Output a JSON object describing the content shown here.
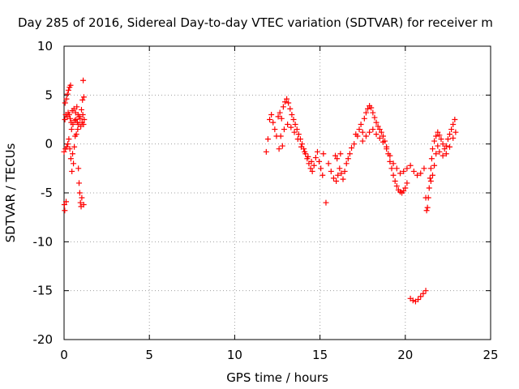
{
  "chart_data": {
    "type": "scatter",
    "title": "Day 285 of 2016, Sidereal Day-to-day VTEC variation (SDTVAR) for receiver m",
    "xlabel": "GPS time / hours",
    "ylabel": "SDTVAR / TECUs",
    "xlim": [
      0,
      25
    ],
    "ylim": [
      -20,
      10
    ],
    "xticks": [
      "0",
      "5",
      "10",
      "15",
      "20",
      "25"
    ],
    "yticks": [
      "10",
      "5",
      "0",
      "-5",
      "-10",
      "-15",
      "-20"
    ],
    "grid": true,
    "legend": "none",
    "marker": "plus",
    "color": "#ff0000",
    "series": [
      {
        "points": [
          [
            0.0,
            -0.8
          ],
          [
            0.02,
            -6.2
          ],
          [
            0.04,
            -6.8
          ],
          [
            0.05,
            2.5
          ],
          [
            0.06,
            4.2
          ],
          [
            0.08,
            -0.5
          ],
          [
            0.1,
            3.0
          ],
          [
            0.12,
            -5.9
          ],
          [
            0.14,
            4.6
          ],
          [
            0.16,
            -0.3
          ],
          [
            0.18,
            2.8
          ],
          [
            0.2,
            5.1
          ],
          [
            0.22,
            0.0
          ],
          [
            0.24,
            3.2
          ],
          [
            0.26,
            5.5
          ],
          [
            0.28,
            0.5
          ],
          [
            0.3,
            3.0
          ],
          [
            0.32,
            5.8
          ],
          [
            0.34,
            -0.5
          ],
          [
            0.36,
            2.6
          ],
          [
            0.38,
            6.0
          ],
          [
            0.4,
            -1.5
          ],
          [
            0.42,
            2.2
          ],
          [
            0.44,
            1.5
          ],
          [
            0.46,
            -2.8
          ],
          [
            0.48,
            3.4
          ],
          [
            0.5,
            -1.0
          ],
          [
            0.52,
            2.0
          ],
          [
            0.55,
            -2.0
          ],
          [
            0.58,
            3.6
          ],
          [
            0.6,
            -0.3
          ],
          [
            0.62,
            2.4
          ],
          [
            0.65,
            0.8
          ],
          [
            0.68,
            3.2
          ],
          [
            0.7,
            2.5
          ],
          [
            0.72,
            1.0
          ],
          [
            0.75,
            3.8
          ],
          [
            0.78,
            2.2
          ],
          [
            0.8,
            1.5
          ],
          [
            0.82,
            3.0
          ],
          [
            0.84,
            -2.5
          ],
          [
            0.86,
            2.0
          ],
          [
            0.88,
            -4.0
          ],
          [
            0.9,
            2.8
          ],
          [
            0.92,
            -5.0
          ],
          [
            0.94,
            2.6
          ],
          [
            0.96,
            -6.0
          ],
          [
            0.98,
            1.8
          ],
          [
            1.0,
            -6.4
          ],
          [
            1.02,
            3.5
          ],
          [
            1.04,
            -5.5
          ],
          [
            1.06,
            2.2
          ],
          [
            1.08,
            4.5
          ],
          [
            1.1,
            3.0
          ],
          [
            1.12,
            6.5
          ],
          [
            1.14,
            2.0
          ],
          [
            1.15,
            -6.2
          ],
          [
            1.16,
            4.8
          ],
          [
            1.18,
            2.5
          ],
          [
            11.85,
            -0.8
          ],
          [
            11.95,
            0.5
          ],
          [
            12.05,
            2.5
          ],
          [
            12.15,
            3.0
          ],
          [
            12.25,
            2.2
          ],
          [
            12.35,
            1.5
          ],
          [
            12.45,
            0.8
          ],
          [
            12.55,
            2.8
          ],
          [
            12.65,
            3.2
          ],
          [
            12.75,
            2.6
          ],
          [
            12.85,
            3.8
          ],
          [
            12.95,
            4.3
          ],
          [
            13.05,
            4.6
          ],
          [
            13.15,
            4.2
          ],
          [
            13.25,
            3.6
          ],
          [
            13.35,
            3.0
          ],
          [
            13.45,
            2.5
          ],
          [
            13.55,
            2.0
          ],
          [
            13.65,
            1.5
          ],
          [
            13.75,
            1.0
          ],
          [
            13.85,
            0.5
          ],
          [
            13.95,
            0.0
          ],
          [
            14.05,
            -0.5
          ],
          [
            14.15,
            -1.0
          ],
          [
            14.25,
            -1.5
          ],
          [
            14.35,
            -2.0
          ],
          [
            14.45,
            -2.5
          ],
          [
            14.55,
            -2.8
          ],
          [
            14.65,
            -2.2
          ],
          [
            14.75,
            -1.4
          ],
          [
            14.85,
            -0.8
          ],
          [
            14.95,
            -1.8
          ],
          [
            15.05,
            -2.5
          ],
          [
            15.15,
            -3.2
          ],
          [
            12.7,
            0.8
          ],
          [
            12.9,
            1.5
          ],
          [
            13.1,
            2.0
          ],
          [
            13.3,
            1.7
          ],
          [
            13.5,
            1.2
          ],
          [
            13.7,
            0.5
          ],
          [
            13.9,
            -0.3
          ],
          [
            14.1,
            -0.8
          ],
          [
            14.3,
            -1.3
          ],
          [
            14.5,
            -1.8
          ],
          [
            12.8,
            -0.2
          ],
          [
            12.6,
            -0.5
          ],
          [
            15.2,
            -1.0
          ],
          [
            15.35,
            -6.0
          ],
          [
            15.5,
            -2.0
          ],
          [
            15.65,
            -2.8
          ],
          [
            15.8,
            -3.5
          ],
          [
            15.95,
            -3.8
          ],
          [
            16.05,
            -3.2
          ],
          [
            16.15,
            -2.5
          ],
          [
            16.25,
            -3.0
          ],
          [
            16.35,
            -3.6
          ],
          [
            16.45,
            -2.8
          ],
          [
            16.55,
            -2.0
          ],
          [
            16.65,
            -1.5
          ],
          [
            16.75,
            -1.0
          ],
          [
            16.85,
            -0.4
          ],
          [
            15.9,
            -1.2
          ],
          [
            16.0,
            -1.5
          ],
          [
            16.2,
            -1.0
          ],
          [
            17.0,
            0.0
          ],
          [
            17.1,
            1.0
          ],
          [
            17.2,
            0.8
          ],
          [
            17.3,
            1.5
          ],
          [
            17.4,
            2.0
          ],
          [
            17.5,
            1.2
          ],
          [
            17.6,
            2.6
          ],
          [
            17.7,
            3.2
          ],
          [
            17.8,
            3.6
          ],
          [
            17.9,
            3.9
          ],
          [
            18.0,
            3.7
          ],
          [
            18.1,
            3.2
          ],
          [
            18.2,
            2.7
          ],
          [
            18.3,
            2.2
          ],
          [
            18.4,
            1.8
          ],
          [
            18.5,
            1.5
          ],
          [
            18.6,
            1.2
          ],
          [
            18.7,
            0.8
          ],
          [
            18.8,
            0.3
          ],
          [
            18.9,
            -0.3
          ],
          [
            19.0,
            -1.0
          ],
          [
            19.1,
            -1.8
          ],
          [
            19.2,
            -2.5
          ],
          [
            19.3,
            -3.2
          ],
          [
            19.4,
            -3.8
          ],
          [
            19.5,
            -4.3
          ],
          [
            19.6,
            -4.7
          ],
          [
            19.7,
            -4.9
          ],
          [
            19.8,
            -5.0
          ],
          [
            19.9,
            -4.8
          ],
          [
            20.0,
            -4.5
          ],
          [
            20.1,
            -4.0
          ],
          [
            17.5,
            0.3
          ],
          [
            17.7,
            0.8
          ],
          [
            17.9,
            1.2
          ],
          [
            18.1,
            1.5
          ],
          [
            18.3,
            1.0
          ],
          [
            18.5,
            0.6
          ],
          [
            18.7,
            0.2
          ],
          [
            18.9,
            -0.5
          ],
          [
            19.1,
            -1.2
          ],
          [
            19.3,
            -2.0
          ],
          [
            19.5,
            -2.5
          ],
          [
            19.7,
            -3.0
          ],
          [
            19.9,
            -2.8
          ],
          [
            20.1,
            -2.5
          ],
          [
            20.3,
            -2.2
          ],
          [
            20.5,
            -2.8
          ],
          [
            20.7,
            -3.2
          ],
          [
            20.9,
            -3.0
          ],
          [
            21.1,
            -2.5
          ],
          [
            20.3,
            -15.8
          ],
          [
            20.45,
            -16.0
          ],
          [
            20.6,
            -16.1
          ],
          [
            20.75,
            -15.9
          ],
          [
            20.9,
            -15.6
          ],
          [
            21.05,
            -15.3
          ],
          [
            21.2,
            -15.0
          ],
          [
            21.2,
            -5.5
          ],
          [
            21.25,
            -6.8
          ],
          [
            21.3,
            -6.5
          ],
          [
            21.35,
            -5.5
          ],
          [
            21.4,
            -4.5
          ],
          [
            21.45,
            -3.5
          ],
          [
            21.5,
            -2.5
          ],
          [
            21.55,
            -1.5
          ],
          [
            21.6,
            -0.5
          ],
          [
            21.7,
            0.3
          ],
          [
            21.8,
            0.8
          ],
          [
            21.9,
            1.2
          ],
          [
            22.0,
            0.9
          ],
          [
            22.1,
            0.5
          ],
          [
            22.2,
            0.0
          ],
          [
            22.3,
            -0.5
          ],
          [
            22.4,
            -0.2
          ],
          [
            22.5,
            0.5
          ],
          [
            22.6,
            1.0
          ],
          [
            22.7,
            1.5
          ],
          [
            22.8,
            2.0
          ],
          [
            22.9,
            2.5
          ],
          [
            22.95,
            1.2
          ],
          [
            21.5,
            -3.8
          ],
          [
            21.6,
            -3.2
          ],
          [
            21.7,
            -2.2
          ],
          [
            21.8,
            -1.0
          ],
          [
            21.9,
            -0.2
          ],
          [
            22.0,
            -0.8
          ],
          [
            22.2,
            -1.2
          ],
          [
            22.4,
            -1.0
          ],
          [
            22.6,
            -0.3
          ],
          [
            22.8,
            0.6
          ]
        ]
      }
    ]
  }
}
